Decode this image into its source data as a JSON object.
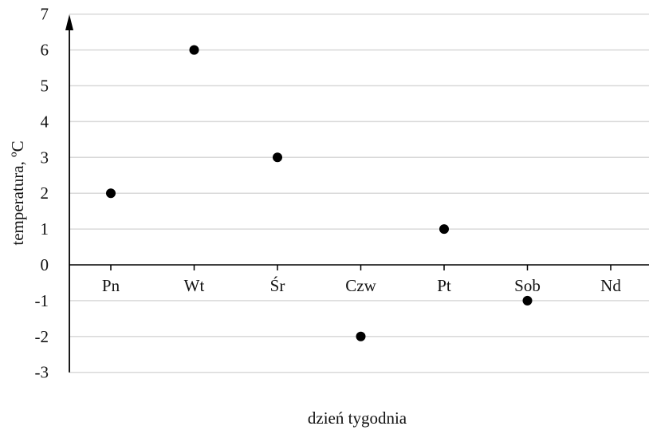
{
  "chart_data": {
    "type": "scatter",
    "xlabel": "dzień tygodnia",
    "ylabel": "temperatura, ºC",
    "categories": [
      "Pn",
      "Wt",
      "Śr",
      "Czw",
      "Pt",
      "Sob",
      "Nd"
    ],
    "ytick_labels": [
      "-3",
      "-2",
      "-1",
      "0",
      "1",
      "2",
      "3",
      "4",
      "5",
      "6",
      "7"
    ],
    "ylim": [
      -3,
      7
    ],
    "grid": true,
    "series": [
      {
        "values": [
          2,
          6,
          3,
          -2,
          1,
          -1,
          null
        ]
      }
    ],
    "colors": {
      "points": "#000000",
      "grid": "#d9d9d9",
      "axis": "#000000"
    }
  }
}
